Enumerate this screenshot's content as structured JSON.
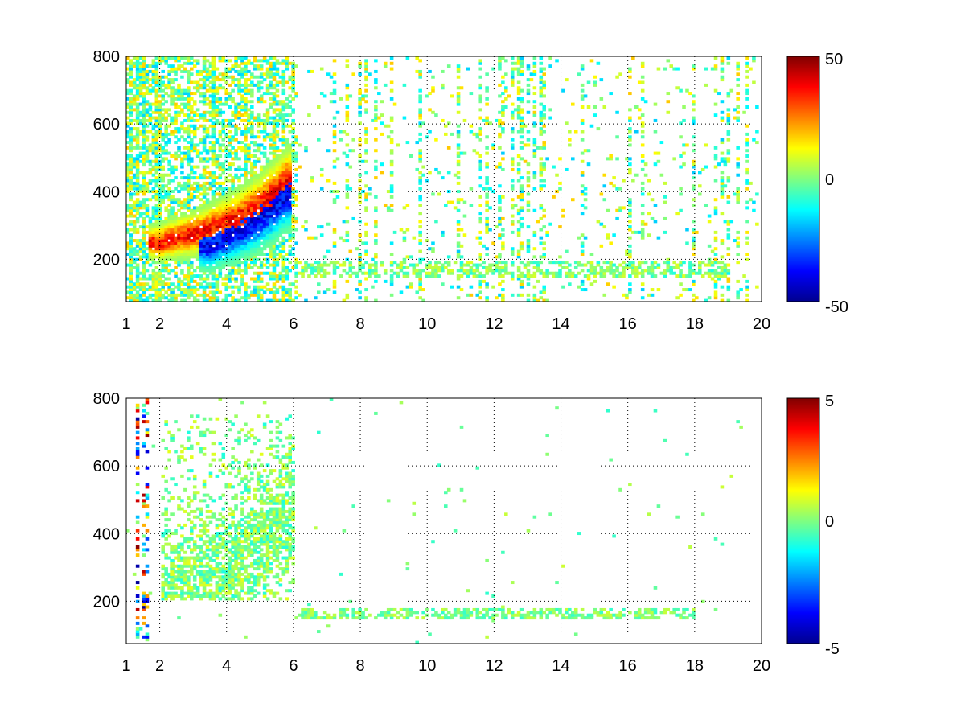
{
  "chart_data": [
    {
      "type": "heatmap",
      "panel": "top",
      "title": "",
      "xlabel": "",
      "ylabel": "",
      "xlim": [
        1,
        20
      ],
      "ylim": [
        75,
        800
      ],
      "xticks": [
        1,
        2,
        4,
        6,
        8,
        10,
        12,
        14,
        16,
        18,
        20
      ],
      "xtick_labels": [
        "1",
        "2",
        "4",
        "6",
        "8",
        "10",
        "12",
        "14",
        "16",
        "18",
        "20"
      ],
      "yticks": [
        200,
        400,
        600,
        800
      ],
      "ytick_labels": [
        "200",
        "400",
        "600",
        "800"
      ],
      "grid": true,
      "colormap": "jet",
      "clim": [
        -50,
        50
      ],
      "colorbar_ticks": [
        -50,
        0,
        50
      ],
      "colorbar_labels": [
        "-50",
        "0",
        "50"
      ],
      "features": [
        {
          "kind": "ridge",
          "sign": "positive",
          "x": [
            2.0,
            2.5,
            3.0,
            3.5,
            4.0,
            4.5,
            5.0,
            5.5,
            5.8
          ],
          "y": [
            250,
            265,
            275,
            290,
            310,
            330,
            360,
            400,
            430
          ],
          "amplitude": 45
        },
        {
          "kind": "ridge",
          "sign": "negative",
          "x": [
            3.5,
            4.0,
            4.5,
            5.0,
            5.5,
            5.8
          ],
          "y": [
            240,
            265,
            290,
            320,
            360,
            390
          ],
          "amplitude": -48
        },
        {
          "kind": "band",
          "sign": "mixed",
          "x_range": [
            6.0,
            19.0
          ],
          "y_center": 170,
          "y_halfwidth": 20,
          "amplitude": 10
        }
      ]
    },
    {
      "type": "heatmap",
      "panel": "bottom",
      "title": "",
      "xlabel": "",
      "ylabel": "",
      "xlim": [
        1,
        20
      ],
      "ylim": [
        75,
        800
      ],
      "xticks": [
        1,
        2,
        4,
        6,
        8,
        10,
        12,
        14,
        16,
        18,
        20
      ],
      "xtick_labels": [
        "1",
        "2",
        "4",
        "6",
        "8",
        "10",
        "12",
        "14",
        "16",
        "18",
        "20"
      ],
      "yticks": [
        200,
        400,
        600,
        800
      ],
      "ytick_labels": [
        "200",
        "400",
        "600",
        "800"
      ],
      "grid": true,
      "colormap": "jet",
      "clim": [
        -5,
        5
      ],
      "colorbar_ticks": [
        -5,
        0,
        5
      ],
      "colorbar_labels": [
        "-5",
        "0",
        "5"
      ],
      "features": [
        {
          "kind": "cloud",
          "sign": "near-zero",
          "x_range": [
            2.0,
            6.0
          ],
          "y_range": [
            200,
            750
          ],
          "amplitude": 1.0
        },
        {
          "kind": "streaks",
          "sign": "mixed",
          "x_range": [
            1.0,
            1.9
          ],
          "y_range": [
            80,
            800
          ],
          "amplitude": 5.0
        },
        {
          "kind": "band",
          "sign": "near-zero",
          "x_range": [
            6.0,
            18.0
          ],
          "y_center": 165,
          "y_halfwidth": 12,
          "amplitude": 0.8
        }
      ]
    }
  ]
}
